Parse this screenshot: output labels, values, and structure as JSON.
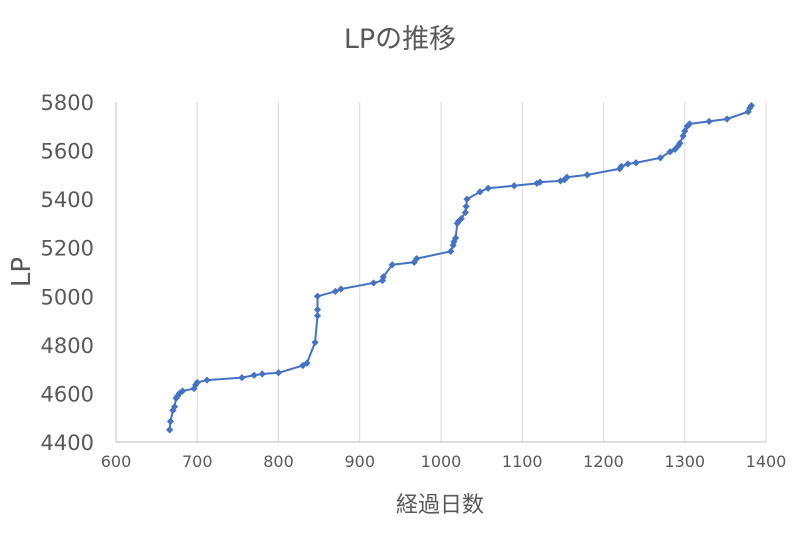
{
  "chart_data": {
    "type": "scatter",
    "title": "LPの推移",
    "xlabel": "経過日数",
    "ylabel": "LP",
    "xlim": [
      600,
      1400
    ],
    "ylim": [
      4400,
      5800
    ],
    "x_ticks": [
      "600",
      "700",
      "800",
      "900",
      "1000",
      "1100",
      "1200",
      "1300",
      "1400"
    ],
    "y_ticks": [
      "4400",
      "4600",
      "4800",
      "5000",
      "5200",
      "5400",
      "5600",
      "5800"
    ],
    "grid": "vertical",
    "legend": "none",
    "series_color": "#4472C4",
    "series": [
      {
        "x": [
          666,
          667,
          670,
          672,
          674,
          676,
          678,
          682,
          696,
          698,
          700,
          712,
          755,
          770,
          780,
          800,
          830,
          835,
          845,
          848,
          848,
          848,
          870,
          877,
          917,
          928,
          929,
          940,
          967,
          970,
          1012,
          1015,
          1016,
          1018,
          1020,
          1022,
          1025,
          1030,
          1031,
          1032,
          1048,
          1058,
          1090,
          1118,
          1122,
          1147,
          1152,
          1155,
          1180,
          1220,
          1222,
          1230,
          1240,
          1270,
          1282,
          1288,
          1292,
          1294,
          1298,
          1300,
          1303,
          1306,
          1330,
          1352,
          1378,
          1380,
          1382
        ],
        "y": [
          4450,
          4485,
          4530,
          4545,
          4580,
          4590,
          4600,
          4610,
          4620,
          4635,
          4645,
          4655,
          4665,
          4675,
          4680,
          4685,
          4715,
          4725,
          4810,
          4920,
          4945,
          5000,
          5020,
          5030,
          5055,
          5065,
          5080,
          5130,
          5140,
          5155,
          5185,
          5210,
          5225,
          5240,
          5300,
          5310,
          5320,
          5345,
          5370,
          5400,
          5430,
          5445,
          5455,
          5465,
          5470,
          5475,
          5480,
          5490,
          5500,
          5525,
          5535,
          5545,
          5550,
          5570,
          5595,
          5605,
          5620,
          5630,
          5660,
          5680,
          5700,
          5710,
          5720,
          5730,
          5760,
          5775,
          5785
        ]
      }
    ]
  }
}
